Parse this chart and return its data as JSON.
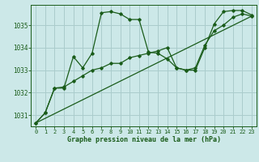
{
  "background_color": "#cce8e8",
  "grid_color": "#aacccc",
  "line_color": "#1a5c1a",
  "text_color": "#1a5c1a",
  "xlabel": "Graphe pression niveau de la mer (hPa)",
  "ylim": [
    1030.5,
    1035.9
  ],
  "xlim": [
    -0.5,
    23.5
  ],
  "yticks": [
    1031,
    1032,
    1033,
    1034,
    1035
  ],
  "xticks": [
    0,
    1,
    2,
    3,
    4,
    5,
    6,
    7,
    8,
    9,
    10,
    11,
    12,
    13,
    14,
    15,
    16,
    17,
    18,
    19,
    20,
    21,
    22,
    23
  ],
  "series1_x": [
    0,
    1,
    2,
    3,
    4,
    5,
    6,
    7,
    8,
    9,
    10,
    11,
    12,
    13,
    14,
    15,
    16,
    17,
    18,
    19,
    20,
    21,
    22,
    23
  ],
  "series1_y": [
    1030.65,
    1031.1,
    1032.2,
    1032.2,
    1033.6,
    1033.1,
    1033.75,
    1035.55,
    1035.6,
    1035.5,
    1035.25,
    1035.25,
    1033.8,
    1033.75,
    1033.5,
    1033.1,
    1033.0,
    1033.0,
    1034.0,
    1035.05,
    1035.6,
    1035.65,
    1035.65,
    1035.45
  ],
  "series2_x": [
    0,
    1,
    2,
    3,
    4,
    5,
    6,
    7,
    8,
    9,
    10,
    11,
    12,
    13,
    14,
    15,
    16,
    17,
    18,
    19,
    20,
    21,
    22,
    23
  ],
  "series2_y": [
    1030.65,
    1031.1,
    1032.2,
    1032.25,
    1032.5,
    1032.75,
    1033.0,
    1033.1,
    1033.3,
    1033.3,
    1033.55,
    1033.65,
    1033.75,
    1033.85,
    1034.0,
    1033.1,
    1033.0,
    1033.1,
    1034.1,
    1034.75,
    1035.0,
    1035.35,
    1035.5,
    1035.4
  ],
  "series3_x": [
    0,
    23
  ],
  "series3_y": [
    1030.65,
    1035.4
  ]
}
